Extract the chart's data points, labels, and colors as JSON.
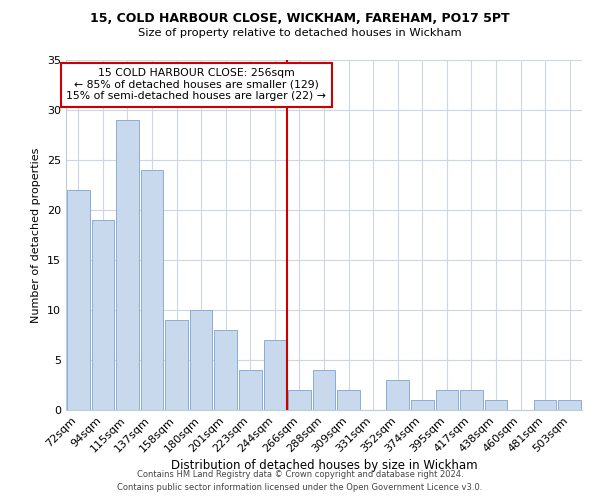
{
  "title1": "15, COLD HARBOUR CLOSE, WICKHAM, FAREHAM, PO17 5PT",
  "title2": "Size of property relative to detached houses in Wickham",
  "xlabel": "Distribution of detached houses by size in Wickham",
  "ylabel": "Number of detached properties",
  "categories": [
    "72sqm",
    "94sqm",
    "115sqm",
    "137sqm",
    "158sqm",
    "180sqm",
    "201sqm",
    "223sqm",
    "244sqm",
    "266sqm",
    "288sqm",
    "309sqm",
    "331sqm",
    "352sqm",
    "374sqm",
    "395sqm",
    "417sqm",
    "438sqm",
    "460sqm",
    "481sqm",
    "503sqm"
  ],
  "values": [
    22,
    19,
    29,
    24,
    9,
    10,
    8,
    4,
    7,
    2,
    4,
    2,
    0,
    3,
    1,
    2,
    2,
    1,
    0,
    1,
    1
  ],
  "bar_color": "#c8d9ee",
  "bar_edge_color": "#8badd4",
  "reference_line_x": 9,
  "reference_line_color": "#cc0000",
  "annotation_line1": "15 COLD HARBOUR CLOSE: 256sqm",
  "annotation_line2": "← 85% of detached houses are smaller (129)",
  "annotation_line3": "15% of semi-detached houses are larger (22) →",
  "annotation_box_color": "#ffffff",
  "annotation_box_edge_color": "#cc0000",
  "ylim": [
    0,
    35
  ],
  "yticks": [
    0,
    5,
    10,
    15,
    20,
    25,
    30,
    35
  ],
  "footer1": "Contains HM Land Registry data © Crown copyright and database right 2024.",
  "footer2": "Contains public sector information licensed under the Open Government Licence v3.0.",
  "bg_color": "#ffffff",
  "grid_color": "#ccd6e8"
}
